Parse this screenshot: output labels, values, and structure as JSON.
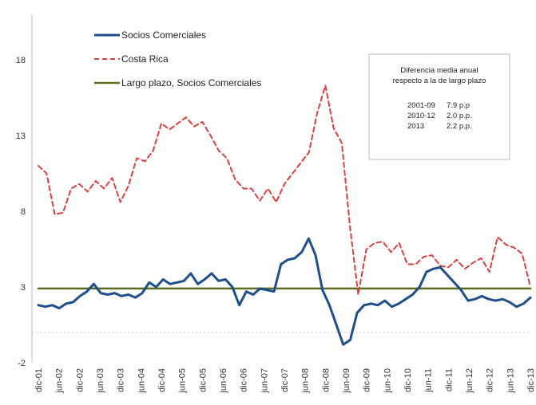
{
  "chart_data": {
    "type": "line",
    "title": "",
    "xlabel": "",
    "ylabel": "",
    "ylim": [
      -2,
      21
    ],
    "y_ticks": [
      "-2",
      "3",
      "8",
      "13",
      "18"
    ],
    "x_tick_labels": [
      "dic-01",
      "jun-02",
      "dic-02",
      "jun-03",
      "dic-03",
      "jun-04",
      "dic-04",
      "jun-05",
      "dic-05",
      "jun-06",
      "dic-06",
      "jun-07",
      "dic-07",
      "jun-08",
      "dic-08",
      "jun-09",
      "dic-09",
      "jun-10",
      "dic-10",
      "jun-11",
      "dic-11",
      "jun-12",
      "dic-12",
      "jun-13",
      "dic-13"
    ],
    "grid": false,
    "legend_position": "top-left",
    "series": [
      {
        "name": "Socios Comerciales",
        "color": "#1f4e8c",
        "style": "solid",
        "values": [
          1.8,
          1.7,
          1.8,
          1.6,
          1.9,
          2.0,
          2.4,
          2.7,
          3.2,
          2.6,
          2.5,
          2.6,
          2.4,
          2.5,
          2.3,
          2.6,
          3.3,
          3.0,
          3.5,
          3.2,
          3.3,
          3.4,
          3.9,
          3.2,
          3.5,
          3.9,
          3.4,
          3.5,
          3.0,
          1.8,
          2.7,
          2.5,
          2.9,
          2.8,
          2.7,
          4.5,
          4.8,
          4.9,
          5.3,
          6.2,
          5.1,
          2.8,
          1.8,
          0.5,
          -0.8,
          -0.5,
          1.3,
          1.8,
          1.9,
          1.8,
          2.1,
          1.7,
          1.9,
          2.2,
          2.5,
          3.0,
          4.0,
          4.2,
          4.3,
          3.8,
          3.3,
          2.8,
          2.1,
          2.2,
          2.4,
          2.2,
          2.1,
          2.2,
          2.0,
          1.7,
          1.9,
          2.3
        ]
      },
      {
        "name": "Costa Rica",
        "color": "#d94141",
        "style": "dashed",
        "values": [
          11.0,
          10.5,
          7.8,
          7.9,
          9.5,
          9.8,
          9.3,
          10.0,
          9.5,
          10.2,
          8.6,
          9.7,
          11.5,
          11.3,
          12.0,
          13.8,
          13.4,
          13.8,
          14.2,
          13.6,
          13.9,
          13.0,
          12.0,
          11.5,
          10.1,
          9.5,
          9.5,
          8.7,
          9.5,
          8.6,
          9.8,
          10.5,
          11.2,
          11.9,
          14.5,
          16.3,
          13.5,
          12.5,
          7.0,
          2.5,
          5.5,
          5.9,
          6.0,
          5.3,
          5.9,
          4.5,
          4.5,
          5.0,
          5.1,
          4.4,
          4.3,
          4.8,
          4.2,
          4.6,
          4.9,
          4.0,
          6.3,
          5.8,
          5.6,
          5.2,
          3.0
        ]
      },
      {
        "name": "Largo plazo, Socios Comerciales",
        "color": "#5a6e1f",
        "style": "solid",
        "values": [
          2.9,
          2.9
        ]
      }
    ],
    "note": {
      "title_line1": "Diferencia media anual",
      "title_line2": "respecto a la de largo plazo",
      "rows": [
        {
          "period": "2001-09",
          "value": "7.9 p.p"
        },
        {
          "period": "2010-12",
          "value": "2.0 p.p."
        },
        {
          "period": "2013",
          "value": "2.2 p.p."
        }
      ]
    }
  }
}
